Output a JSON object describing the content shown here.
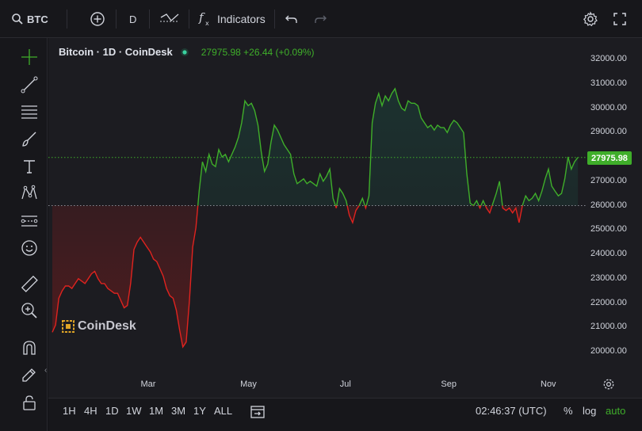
{
  "toolbar": {
    "symbol": "BTC",
    "interval": "D",
    "indicators_label": "Indicators"
  },
  "legend": {
    "title": "Bitcoin · 1D · CoinDesk",
    "last": "27975.98",
    "change": "+26.44 (+0.09%)"
  },
  "watermark": "CoinDesk",
  "price_badge": "27975.98",
  "bottom": {
    "ranges": [
      "1H",
      "4H",
      "1D",
      "1W",
      "1M",
      "3M",
      "1Y",
      "ALL"
    ],
    "time": "02:46:37 (UTC)",
    "percent": "%",
    "log": "log",
    "auto": "auto"
  },
  "colors": {
    "up": "#3fae2a",
    "down": "#e0231f",
    "bg": "#1c1c21"
  },
  "chart_data": {
    "type": "line",
    "y_ticks": [
      "32000.00",
      "31000.00",
      "30000.00",
      "29000.00",
      "28000.00",
      "27000.00",
      "26000.00",
      "25000.00",
      "24000.00",
      "23000.00",
      "22000.00",
      "21000.00",
      "20000.00"
    ],
    "x_ticks": [
      "Mar",
      "May",
      "Jul",
      "Sep",
      "Nov"
    ],
    "ylim": [
      19500,
      32400
    ],
    "baseline": 26000,
    "x_start": "2023-01-01",
    "x_end": "2023-11-30",
    "series": [
      {
        "values": [
          [
            0,
            20800
          ],
          [
            2,
            21100
          ],
          [
            4,
            22200
          ],
          [
            6,
            22500
          ],
          [
            8,
            22700
          ],
          [
            10,
            22700
          ],
          [
            12,
            22600
          ],
          [
            14,
            22800
          ],
          [
            16,
            23000
          ],
          [
            18,
            22900
          ],
          [
            20,
            22800
          ],
          [
            22,
            23000
          ],
          [
            24,
            23200
          ],
          [
            26,
            23300
          ],
          [
            28,
            23000
          ],
          [
            30,
            22800
          ],
          [
            32,
            22800
          ],
          [
            34,
            22600
          ],
          [
            36,
            22500
          ],
          [
            38,
            22400
          ],
          [
            40,
            22400
          ],
          [
            42,
            22100
          ],
          [
            44,
            21800
          ],
          [
            46,
            21900
          ],
          [
            48,
            22800
          ],
          [
            50,
            24200
          ],
          [
            52,
            24500
          ],
          [
            54,
            24700
          ],
          [
            56,
            24500
          ],
          [
            58,
            24300
          ],
          [
            60,
            24100
          ],
          [
            62,
            23800
          ],
          [
            64,
            23700
          ],
          [
            66,
            23400
          ],
          [
            68,
            23100
          ],
          [
            70,
            22600
          ],
          [
            72,
            22300
          ],
          [
            74,
            22200
          ],
          [
            76,
            21700
          ],
          [
            78,
            20900
          ],
          [
            80,
            20200
          ],
          [
            82,
            20400
          ],
          [
            84,
            22100
          ],
          [
            86,
            24300
          ],
          [
            88,
            25100
          ],
          [
            90,
            26600
          ],
          [
            92,
            27800
          ],
          [
            94,
            27400
          ],
          [
            96,
            28100
          ],
          [
            98,
            27700
          ],
          [
            100,
            27600
          ],
          [
            102,
            28300
          ],
          [
            104,
            28000
          ],
          [
            106,
            28100
          ],
          [
            108,
            27800
          ],
          [
            110,
            28100
          ],
          [
            112,
            28400
          ],
          [
            114,
            28800
          ],
          [
            116,
            29400
          ],
          [
            118,
            30300
          ],
          [
            120,
            30100
          ],
          [
            122,
            30200
          ],
          [
            124,
            29900
          ],
          [
            126,
            29300
          ],
          [
            128,
            28200
          ],
          [
            130,
            27400
          ],
          [
            132,
            27700
          ],
          [
            134,
            28600
          ],
          [
            136,
            29300
          ],
          [
            138,
            29100
          ],
          [
            140,
            28800
          ],
          [
            142,
            28500
          ],
          [
            144,
            28300
          ],
          [
            146,
            28100
          ],
          [
            148,
            27300
          ],
          [
            150,
            26900
          ],
          [
            152,
            27000
          ],
          [
            154,
            27100
          ],
          [
            156,
            26900
          ],
          [
            158,
            27000
          ],
          [
            160,
            26900
          ],
          [
            162,
            26800
          ],
          [
            164,
            27300
          ],
          [
            166,
            27000
          ],
          [
            168,
            27200
          ],
          [
            170,
            27500
          ],
          [
            172,
            26300
          ],
          [
            174,
            25900
          ],
          [
            176,
            26700
          ],
          [
            178,
            26500
          ],
          [
            180,
            26200
          ],
          [
            182,
            25600
          ],
          [
            184,
            25300
          ],
          [
            186,
            25800
          ],
          [
            188,
            26000
          ],
          [
            190,
            26300
          ],
          [
            192,
            25900
          ],
          [
            194,
            26400
          ],
          [
            196,
            29400
          ],
          [
            198,
            30200
          ],
          [
            200,
            30600
          ],
          [
            202,
            30100
          ],
          [
            204,
            30500
          ],
          [
            206,
            30300
          ],
          [
            208,
            30600
          ],
          [
            210,
            30800
          ],
          [
            212,
            30300
          ],
          [
            214,
            30000
          ],
          [
            216,
            29900
          ],
          [
            218,
            30300
          ],
          [
            220,
            30200
          ],
          [
            222,
            30200
          ],
          [
            224,
            30100
          ],
          [
            226,
            29600
          ],
          [
            228,
            29400
          ],
          [
            230,
            29200
          ],
          [
            232,
            29300
          ],
          [
            234,
            29100
          ],
          [
            236,
            29300
          ],
          [
            238,
            29200
          ],
          [
            240,
            29200
          ],
          [
            242,
            29000
          ],
          [
            244,
            29300
          ],
          [
            246,
            29500
          ],
          [
            248,
            29400
          ],
          [
            250,
            29200
          ],
          [
            252,
            29000
          ],
          [
            254,
            27300
          ],
          [
            256,
            26100
          ],
          [
            258,
            26000
          ],
          [
            260,
            26200
          ],
          [
            262,
            25900
          ],
          [
            264,
            26200
          ],
          [
            266,
            25900
          ],
          [
            268,
            25700
          ],
          [
            270,
            26100
          ],
          [
            272,
            26500
          ],
          [
            274,
            27000
          ],
          [
            276,
            25900
          ],
          [
            278,
            25800
          ],
          [
            280,
            25900
          ],
          [
            282,
            25700
          ],
          [
            284,
            25900
          ],
          [
            286,
            25300
          ],
          [
            288,
            26000
          ],
          [
            290,
            26400
          ],
          [
            292,
            26200
          ],
          [
            294,
            26300
          ],
          [
            296,
            26500
          ],
          [
            298,
            26200
          ],
          [
            300,
            26600
          ],
          [
            302,
            27100
          ],
          [
            304,
            27500
          ],
          [
            306,
            26800
          ],
          [
            308,
            26600
          ],
          [
            310,
            26400
          ],
          [
            312,
            26500
          ],
          [
            314,
            27100
          ],
          [
            316,
            28000
          ],
          [
            318,
            27500
          ],
          [
            320,
            27800
          ],
          [
            322,
            27976
          ]
        ]
      }
    ]
  }
}
